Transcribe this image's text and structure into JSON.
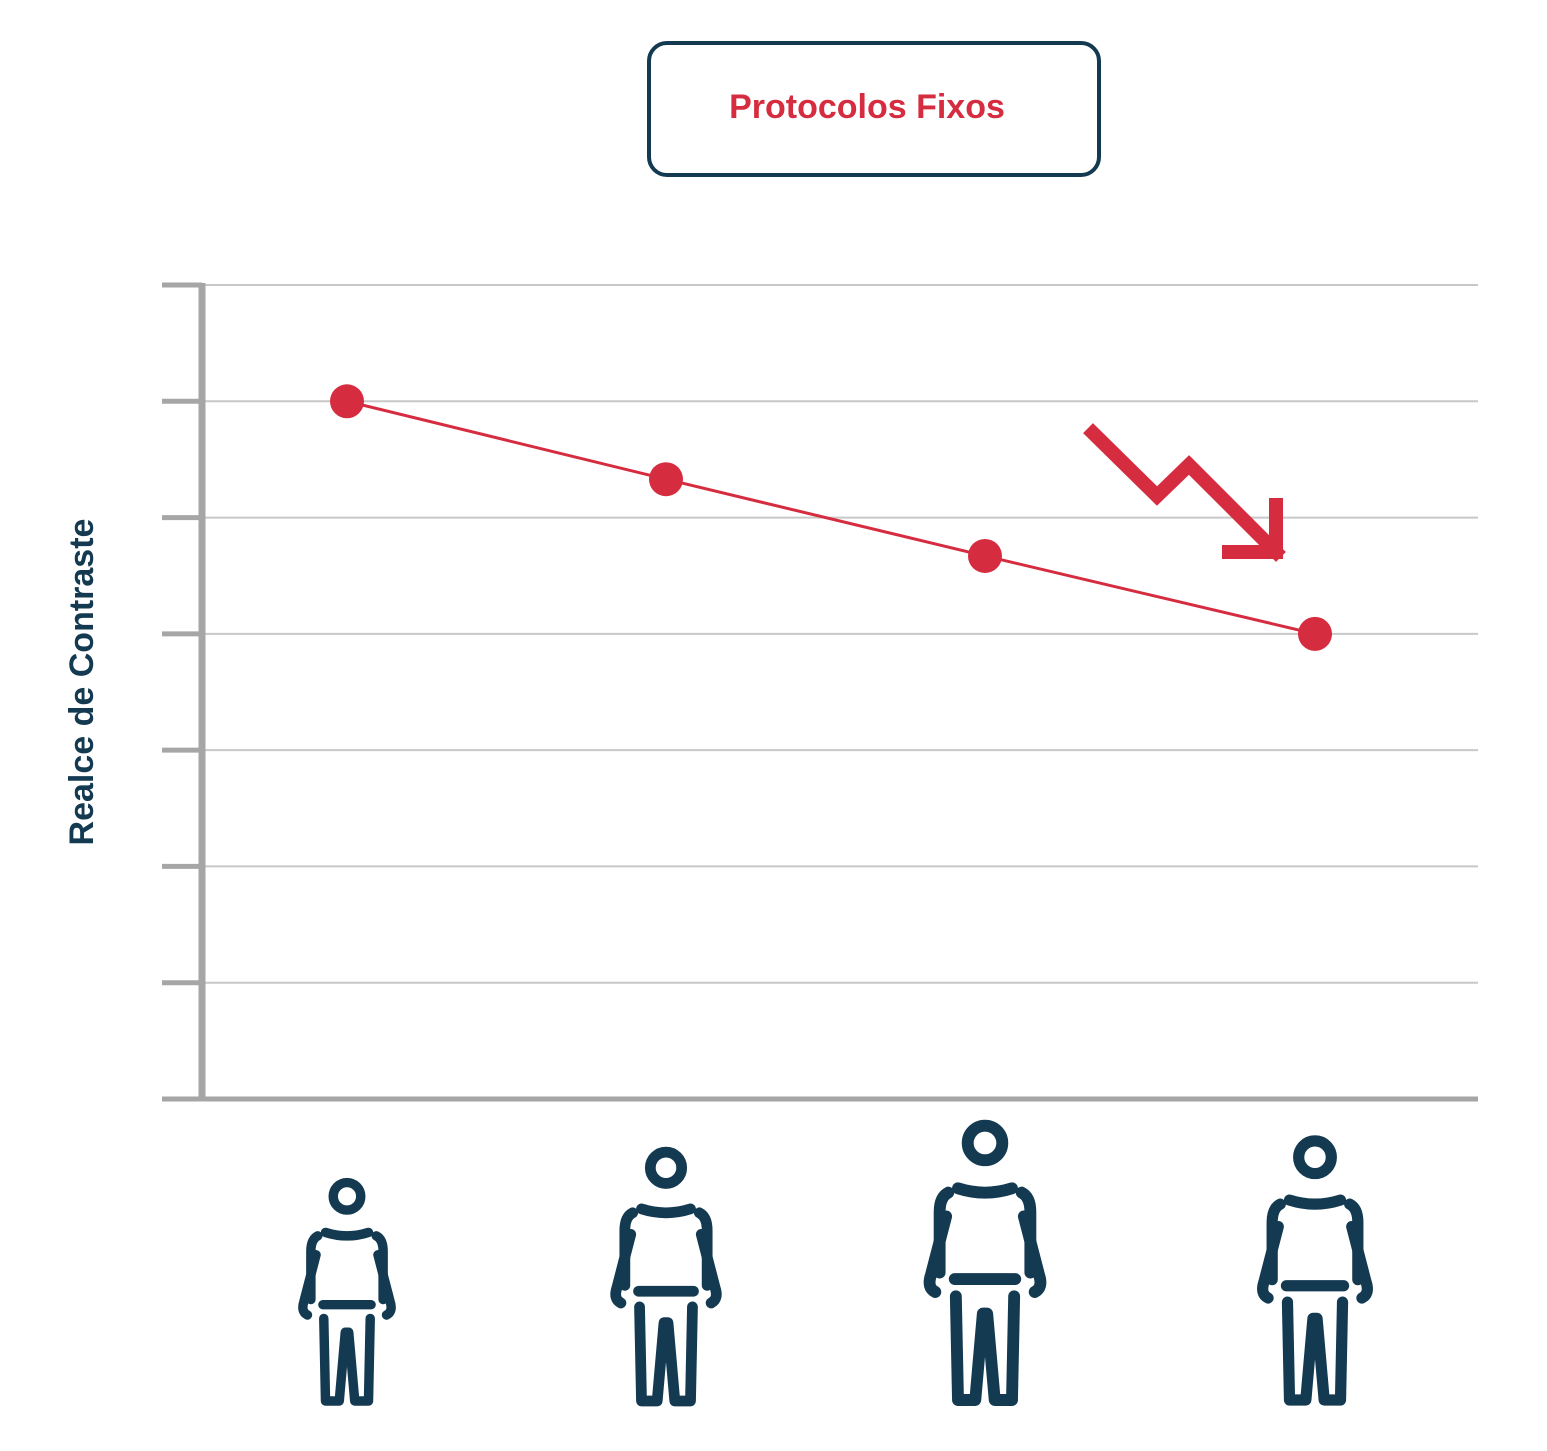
{
  "colors": {
    "accent": "#d62c40",
    "navy": "#143a52",
    "grid": "#c8c8c8",
    "axis": "#a6a6a6"
  },
  "chart_data": {
    "type": "line",
    "title": "Protocolos Fixos",
    "ylabel": "Realce de Contraste",
    "xlabel": "",
    "x_icons": [
      "person-icon",
      "person-icon",
      "person-icon",
      "person-icon"
    ],
    "y_ticks": [
      0,
      1,
      2,
      3,
      4,
      5,
      6,
      7
    ],
    "ylim": [
      0,
      7
    ],
    "grid": true,
    "values": [
      6,
      5.33,
      4.67,
      4
    ],
    "trend_icon": "trend-down-arrow-icon"
  }
}
